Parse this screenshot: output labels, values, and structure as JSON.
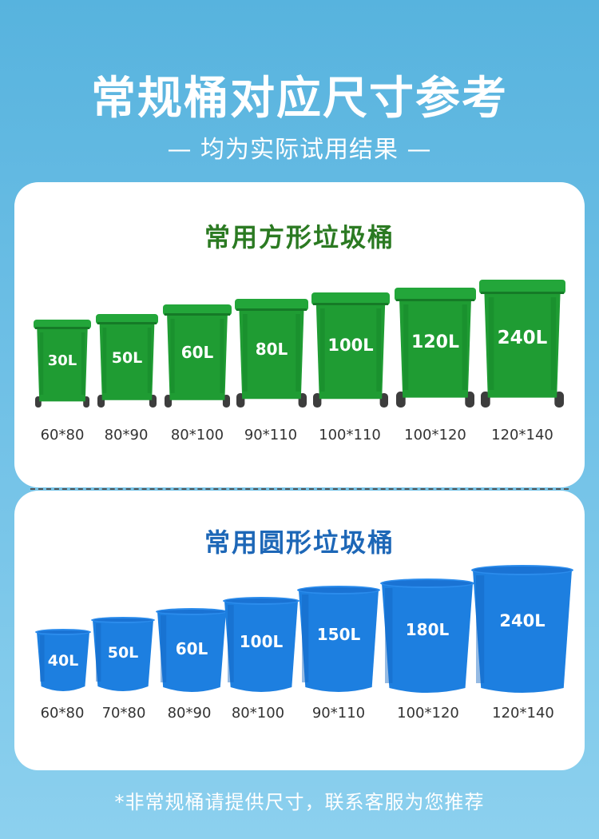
{
  "header": {
    "title": "常规桶对应尺寸参考",
    "subtitle": "— 均为实际试用结果 —"
  },
  "square_section": {
    "title": "常用方形垃圾桶",
    "color": "#1f9c33",
    "icon": "wheelie-bin-icon",
    "items": [
      {
        "capacity": "30L",
        "size": "60*80"
      },
      {
        "capacity": "50L",
        "size": "80*90"
      },
      {
        "capacity": "60L",
        "size": "80*100"
      },
      {
        "capacity": "80L",
        "size": "90*110"
      },
      {
        "capacity": "100L",
        "size": "100*110"
      },
      {
        "capacity": "120L",
        "size": "100*120"
      },
      {
        "capacity": "240L",
        "size": "120*140"
      }
    ]
  },
  "round_section": {
    "title": "常用圆形垃圾桶",
    "color": "#1d7fe0",
    "icon": "round-bucket-icon",
    "items": [
      {
        "capacity": "40L",
        "size": "60*80"
      },
      {
        "capacity": "50L",
        "size": "70*80"
      },
      {
        "capacity": "60L",
        "size": "80*90"
      },
      {
        "capacity": "100L",
        "size": "80*100"
      },
      {
        "capacity": "150L",
        "size": "90*110"
      },
      {
        "capacity": "180L",
        "size": "100*120"
      },
      {
        "capacity": "240L",
        "size": "120*140"
      }
    ]
  },
  "footer": {
    "note": "*非常规桶请提供尺寸，联系客服为您推荐"
  }
}
